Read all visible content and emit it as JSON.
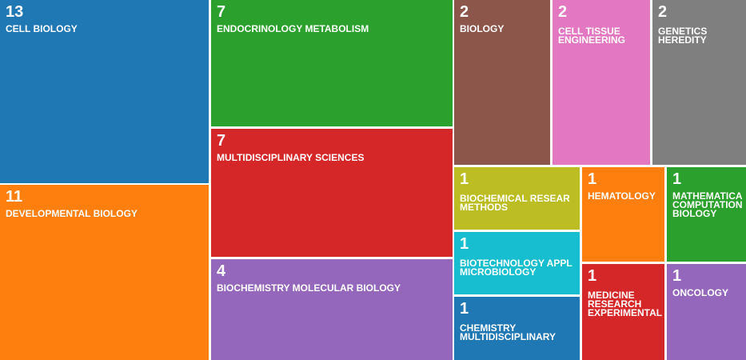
{
  "chart_data": {
    "type": "treemap",
    "colors": [
      "#1f77b4",
      "#ff7f0e",
      "#2ca02c",
      "#d62728",
      "#9467bd",
      "#8c564b",
      "#e377c2",
      "#7f7f7f",
      "#bcbd22",
      "#17becf"
    ],
    "items": [
      {
        "label": "CELL BIOLOGY",
        "value": 13,
        "color": "#1f77b4"
      },
      {
        "label": "DEVELOPMENTAL BIOLOGY",
        "value": 11,
        "color": "#ff7f0e"
      },
      {
        "label": "ENDOCRINOLOGY METABOLISM",
        "value": 7,
        "color": "#2ca02c"
      },
      {
        "label": "MULTIDISCIPLINARY SCIENCES",
        "value": 7,
        "color": "#d62728"
      },
      {
        "label": "BIOCHEMISTRY MOLECULAR BIOLOGY",
        "value": 4,
        "color": "#9467bd"
      },
      {
        "label": "BIOLOGY",
        "value": 2,
        "color": "#8c564b"
      },
      {
        "label": "CELL TISSUE\nENGINEERING",
        "value": 2,
        "color": "#e377c2"
      },
      {
        "label": "GENETICS\nHEREDITY",
        "value": 2,
        "color": "#7f7f7f"
      },
      {
        "label": "BIOCHEMICAL RESEAR\nMETHODS",
        "value": 1,
        "color": "#bcbd22"
      },
      {
        "label": "BIOTECHNOLOGY APPL\nMICROBIOLOGY",
        "value": 1,
        "color": "#17becf"
      },
      {
        "label": "CHEMISTRY\nMULTIDISCIPLINARY",
        "value": 1,
        "color": "#1f77b4"
      },
      {
        "label": "HEMATOLOGY",
        "value": 1,
        "color": "#ff7f0e"
      },
      {
        "label": "MATHEMATICA\nCOMPUTATION\nBIOLOGY",
        "value": 1,
        "color": "#2ca02c"
      },
      {
        "label": "MEDICINE\nRESEARCH\nEXPERIMENTAL",
        "value": 1,
        "color": "#d62728"
      },
      {
        "label": "ONCOLOGY",
        "value": 1,
        "color": "#9467bd"
      }
    ]
  }
}
